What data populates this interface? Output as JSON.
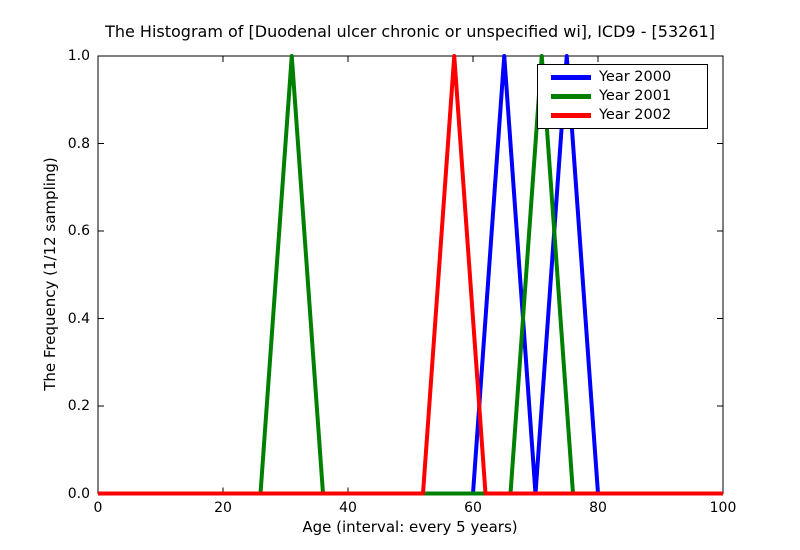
{
  "chart_data": {
    "type": "line",
    "title": "The Histogram of [Duodenal ulcer chronic or unspecified wi], ICD9 - [53261]",
    "xlabel": "Age (interval: every 5 years)",
    "ylabel": "The Frequency (1/12 sampling)",
    "xlim": [
      0,
      100
    ],
    "ylim": [
      0.0,
      1.0
    ],
    "xticks": [
      0,
      20,
      40,
      60,
      80,
      100
    ],
    "yticks": [
      "0.0",
      "0.2",
      "0.4",
      "0.6",
      "0.8",
      "1.0"
    ],
    "grid": false,
    "legend_position": "upper right",
    "frame_color": "#000000",
    "background_color": "#ffffff",
    "line_width": 4,
    "series": [
      {
        "name": "Year 2000",
        "color": "#0000ff",
        "points": [
          [
            0,
            0
          ],
          [
            60,
            0
          ],
          [
            65,
            1
          ],
          [
            70,
            0
          ],
          [
            75,
            1
          ],
          [
            80,
            0
          ],
          [
            100,
            0
          ]
        ]
      },
      {
        "name": "Year 2001",
        "color": "#008000",
        "points": [
          [
            0,
            0
          ],
          [
            26,
            0
          ],
          [
            31,
            1
          ],
          [
            36,
            0
          ],
          [
            66,
            0
          ],
          [
            71,
            1
          ],
          [
            76,
            0
          ],
          [
            100,
            0
          ]
        ]
      },
      {
        "name": "Year 2002",
        "color": "#ff0000",
        "points": [
          [
            0,
            0
          ],
          [
            52,
            0
          ],
          [
            57,
            1
          ],
          [
            62,
            0
          ],
          [
            100,
            0
          ]
        ]
      }
    ]
  }
}
